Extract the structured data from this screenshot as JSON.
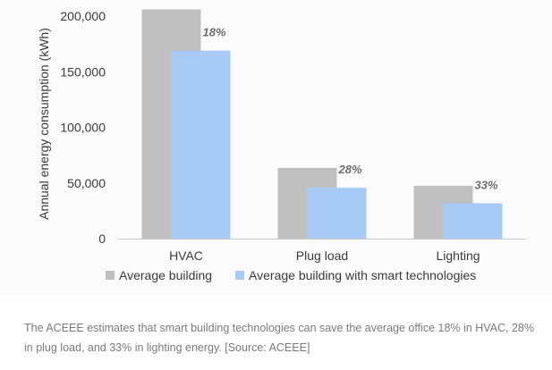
{
  "chart_data": {
    "type": "bar",
    "ylabel": "Annual energy consumption (kWh)",
    "ylim": [
      0,
      200000
    ],
    "yticks": [
      "0",
      "50,000",
      "100,000",
      "150,000",
      "200,000"
    ],
    "ytick_values": [
      0,
      50000,
      100000,
      150000,
      200000
    ],
    "categories": [
      "HVAC",
      "Plug load",
      "Lighting"
    ],
    "series": [
      {
        "name": "Average building",
        "color": "#c0c0c0",
        "values": [
          206000,
          63500,
          47500
        ]
      },
      {
        "name": "Average building with smart technologies",
        "color": "#a8cbf5",
        "values": [
          169000,
          45700,
          31800
        ]
      }
    ],
    "annotations": [
      "18%",
      "28%",
      "33%"
    ],
    "grid": false,
    "legend_position": "bottom"
  },
  "caption": "The ACEEE estimates that smart building technologies can save the average office 18% in HVAC, 28% in plug load, and 33% in lighting energy. [Source: ACEEE]"
}
